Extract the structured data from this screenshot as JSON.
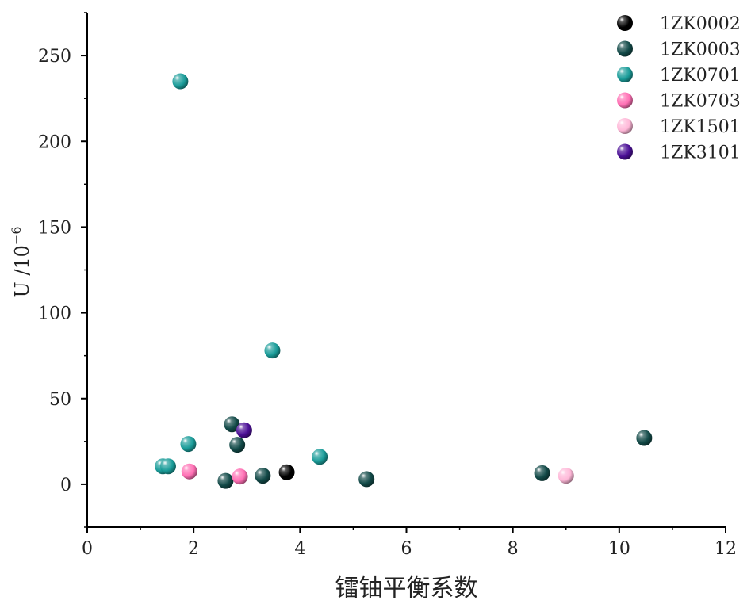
{
  "chart_data": {
    "type": "scatter",
    "xlabel": "镭铀平衡系数",
    "ylabel": {
      "main": "U /10",
      "exp": "−6"
    },
    "xlim": [
      0,
      12
    ],
    "ylim": [
      -25,
      275
    ],
    "xticks": [
      0,
      2,
      4,
      6,
      8,
      10,
      12
    ],
    "yticks": [
      0,
      50,
      100,
      150,
      200,
      250
    ],
    "grid": false,
    "legend_position": "top-right",
    "series": [
      {
        "name": "1ZK0002",
        "color": "#000000",
        "points": [
          [
            3.75,
            7
          ]
        ]
      },
      {
        "name": "1ZK0003",
        "color": "#124a48",
        "points": [
          [
            2.6,
            2
          ],
          [
            2.72,
            35
          ],
          [
            2.82,
            23
          ],
          [
            3.3,
            5
          ],
          [
            5.25,
            3
          ],
          [
            8.55,
            6.5
          ],
          [
            10.47,
            27
          ]
        ]
      },
      {
        "name": "1ZK0701",
        "color": "#1a9c99",
        "points": [
          [
            1.75,
            235
          ],
          [
            1.42,
            10.5
          ],
          [
            1.52,
            10.5
          ],
          [
            1.9,
            23.5
          ],
          [
            3.48,
            78
          ],
          [
            4.37,
            16
          ]
        ]
      },
      {
        "name": "1ZK0703",
        "color": "#ff6fb4",
        "points": [
          [
            1.92,
            7.5
          ],
          [
            2.87,
            4.5
          ]
        ]
      },
      {
        "name": "1ZK1501",
        "color": "#ffb8d8",
        "points": [
          [
            9.0,
            5
          ]
        ]
      },
      {
        "name": "1ZK3101",
        "color": "#4b0f96",
        "points": [
          [
            2.95,
            31.5
          ]
        ]
      }
    ]
  }
}
